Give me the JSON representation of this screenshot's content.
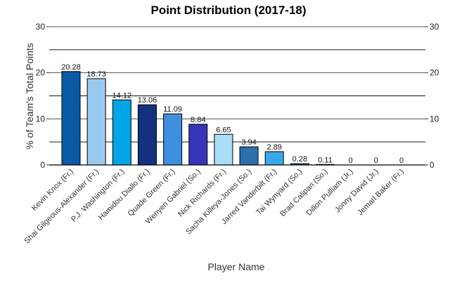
{
  "chart_data": {
    "type": "bar",
    "title": "Point Distribution (2017-18)",
    "xlabel": "Player Name",
    "ylabel": "% of Team's Total Points",
    "ylim": [
      0,
      30
    ],
    "yticks": [
      0,
      10,
      20,
      30
    ],
    "grid": true,
    "right_axis": true,
    "categories": [
      "Kevin Knox (Fr.)",
      "Shai Gilgeous-Alexander (Fr.)",
      "P.J. Washington (Fr.)",
      "Hamidou Diallo (Fr.)",
      "Quade Green (Fr.)",
      "Wenyen Gabriel (So.)",
      "Nick Richards (Fr.)",
      "Sacha Killeya-Jones (So.)",
      "Jarred Vanderbilt (Fr.)",
      "Tai Wynyard (So.)",
      "Brad Calipari (So.)",
      "Dillon Pulliam (Jr.)",
      "Jonny David (Jr.)",
      "Jemarl Baker (Fr.)"
    ],
    "values": [
      20.28,
      18.73,
      14.12,
      13.06,
      11.09,
      8.84,
      6.65,
      3.94,
      2.89,
      0.28,
      0.11,
      0,
      0,
      0
    ],
    "value_labels": [
      "20.28",
      "18.73",
      "14.12",
      "13.06",
      "11.09",
      "8.84",
      "6.65",
      "3.94",
      "2.89",
      "0.28",
      "0.11",
      "0",
      "0",
      "0"
    ],
    "colors": [
      "#0b5aa8",
      "#9bc9ee",
      "#00a5e8",
      "#14317e",
      "#3f90dc",
      "#3834b8",
      "#a9def7",
      "#2b6fad",
      "#3aa8e8",
      "#1a66b8",
      "#2a7fd4",
      "#3d8fdc",
      "#3d8fdc",
      "#3d8fdc"
    ]
  }
}
